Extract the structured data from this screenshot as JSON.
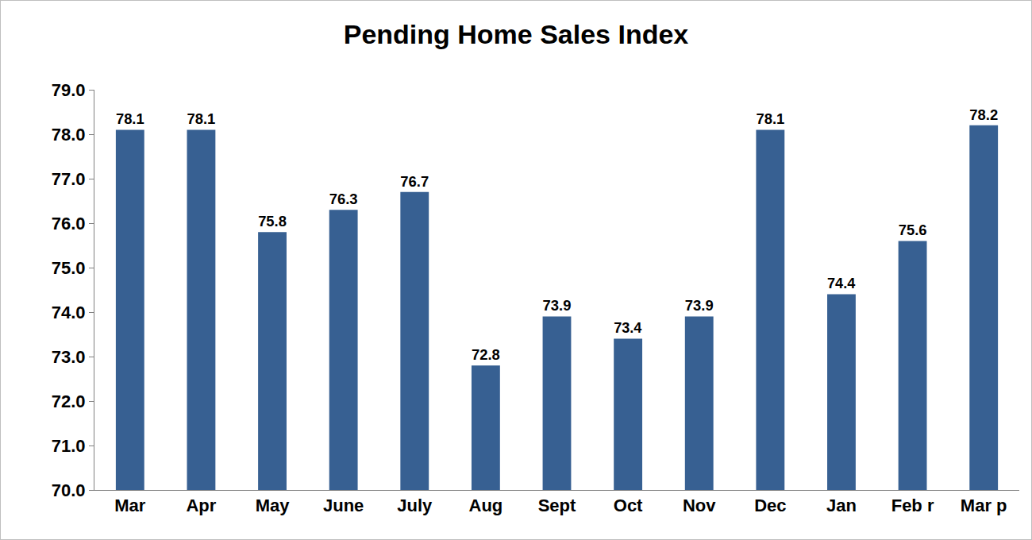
{
  "chart_data": {
    "type": "bar",
    "title": "Pending Home Sales Index",
    "categories": [
      "Mar",
      "Apr",
      "May",
      "June",
      "July",
      "Aug",
      "Sept",
      "Oct",
      "Nov",
      "Dec",
      "Jan",
      "Feb r",
      "Mar p"
    ],
    "values": [
      78.1,
      78.1,
      75.8,
      76.3,
      76.7,
      72.8,
      73.9,
      73.4,
      73.9,
      78.1,
      74.4,
      75.6,
      78.2
    ],
    "color": "#376092",
    "ylim": [
      70,
      79
    ],
    "yticks": [
      {
        "value": 70,
        "label": "70.0"
      },
      {
        "value": 71,
        "label": "71.0"
      },
      {
        "value": 72,
        "label": "72.0"
      },
      {
        "value": 73,
        "label": "73.0"
      },
      {
        "value": 74,
        "label": "74.0"
      },
      {
        "value": 75,
        "label": "75.0"
      },
      {
        "value": 76,
        "label": "76.0"
      },
      {
        "value": 77,
        "label": "77.0"
      },
      {
        "value": 78,
        "label": "78.0"
      },
      {
        "value": 79,
        "label": "79.0"
      }
    ],
    "grid": false,
    "data_labels": true
  }
}
